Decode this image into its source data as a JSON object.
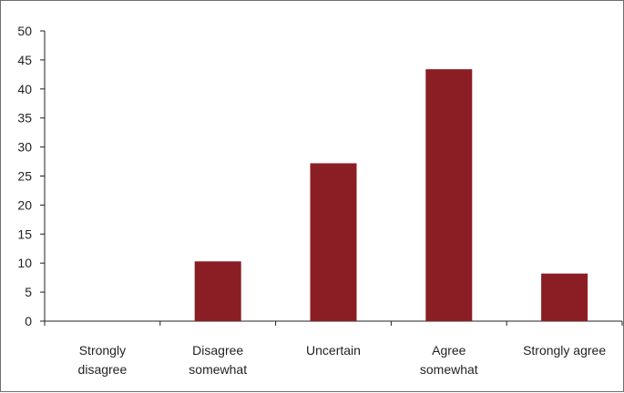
{
  "chart_data": {
    "type": "bar",
    "title": "",
    "xlabel": "",
    "ylabel": "",
    "categories": [
      [
        "Strongly",
        "disagree"
      ],
      [
        "Disagree",
        "somewhat"
      ],
      [
        "Uncertain"
      ],
      [
        "Agree",
        "somewhat"
      ],
      [
        "Strongly agree"
      ]
    ],
    "values": [
      0,
      10.3,
      27.2,
      43.4,
      8.2
    ],
    "ylim": [
      0,
      50
    ],
    "yticks": [
      0,
      5,
      10,
      15,
      20,
      25,
      30,
      35,
      40,
      45,
      50
    ],
    "bar_color": "#8b1e24",
    "axis_color": "#231f20",
    "grid": false,
    "legend": "none"
  }
}
